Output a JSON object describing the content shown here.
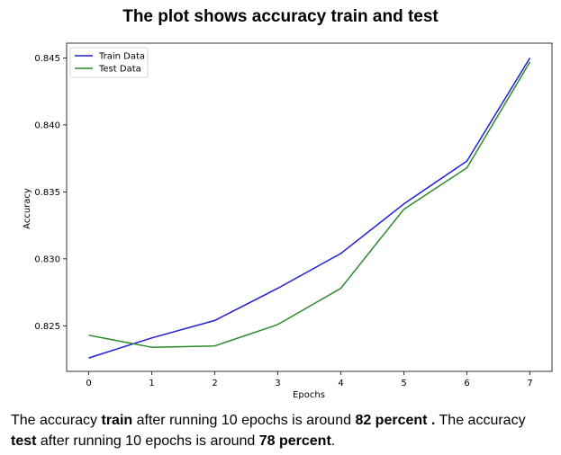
{
  "title": "The plot shows accuracy train and test",
  "chart_data": {
    "type": "line",
    "x": [
      0,
      1,
      2,
      3,
      4,
      5,
      6,
      7
    ],
    "series": [
      {
        "name": "Train Data",
        "color": "#1f1fd6",
        "values": [
          0.8226,
          0.8241,
          0.8254,
          0.8278,
          0.8304,
          0.8341,
          0.8373,
          0.845
        ]
      },
      {
        "name": "Test Data",
        "color": "#2a8a2a",
        "values": [
          0.8243,
          0.8234,
          0.8235,
          0.8251,
          0.8278,
          0.8337,
          0.8368,
          0.8447
        ]
      }
    ],
    "xlabel": "Epochs",
    "ylabel": "Accuracy",
    "xlim": [
      -0.35,
      7.35
    ],
    "ylim": [
      0.8216,
      0.8461
    ],
    "xticks": [
      "0",
      "1",
      "2",
      "3",
      "4",
      "5",
      "6",
      "7"
    ],
    "yticks": [
      0.825,
      0.83,
      0.835,
      0.84,
      0.845
    ],
    "ytick_labels": [
      "0.825",
      "0.830",
      "0.835",
      "0.840",
      "0.845"
    ],
    "grid": false,
    "legend": "top-left"
  },
  "caption": {
    "p1": "The accuracy ",
    "b1": "train",
    "p2": " after running 10 epochs is around ",
    "b2": "82 percent .",
    "p3": " The accuracy ",
    "b3": "test",
    "p4": " after running 10 epochs is around ",
    "b4": "78 percent",
    "p5": "."
  }
}
